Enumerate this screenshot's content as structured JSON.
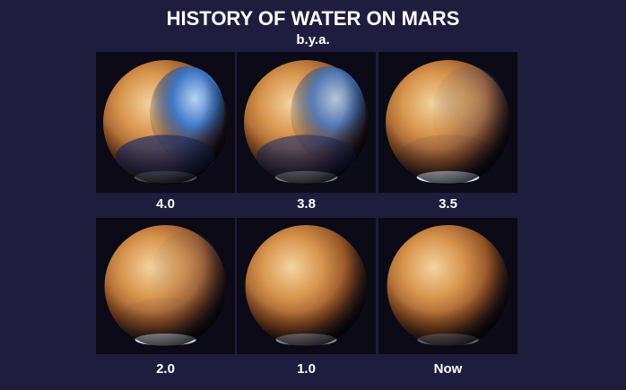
{
  "title": "HISTORY OF WATER ON MARS",
  "subtitle": "b.y.a.",
  "panels": [
    {
      "label": "4.0"
    },
    {
      "label": "3.8"
    },
    {
      "label": "3.5"
    },
    {
      "label": "2.0"
    },
    {
      "label": "1.0"
    },
    {
      "label": "Now"
    }
  ]
}
